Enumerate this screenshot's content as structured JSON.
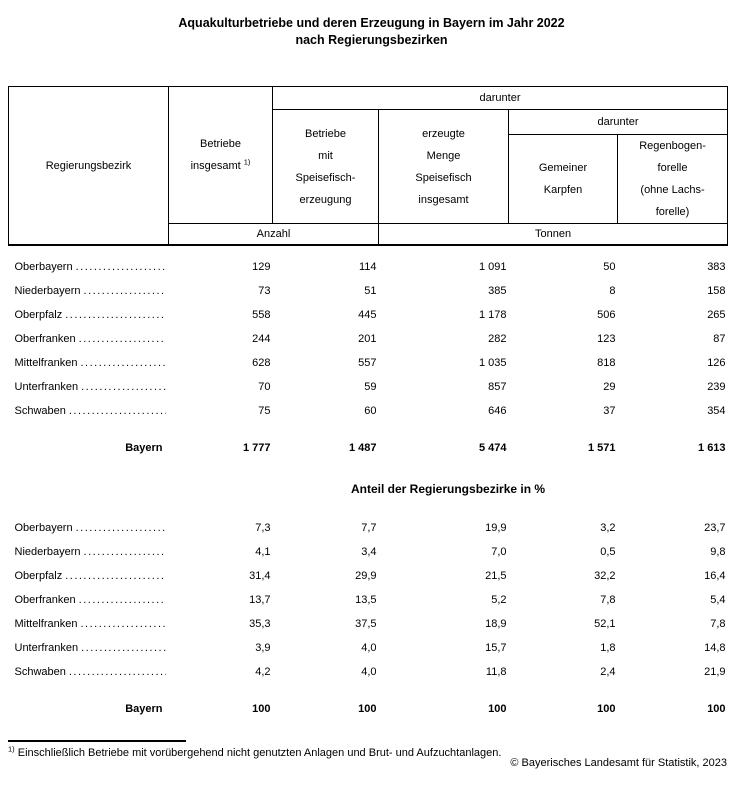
{
  "title": {
    "line1": "Aquakulturbetriebe und deren Erzeugung in Bayern im Jahr 2022",
    "line2": "nach Regierungsbezirken"
  },
  "table": {
    "headers": {
      "c1": "Regierungsbezirk",
      "darunter_outer": "darunter",
      "darunter_inner": "darunter",
      "c2": {
        "line1": "Betriebe",
        "line2": "insgesamt",
        "footnote_marker": "1)"
      },
      "c3": {
        "lines": [
          "Betriebe",
          "mit",
          "Speisefisch-",
          "erzeugung"
        ]
      },
      "c4": {
        "lines": [
          "erzeugte",
          "Menge",
          "Speisefisch",
          "insgesamt"
        ]
      },
      "c5": {
        "lines": [
          "Gemeiner",
          "Karpfen"
        ]
      },
      "c6": {
        "lines": [
          "Regenbogen-",
          "forelle",
          "(ohne Lachs-",
          "forelle)"
        ]
      }
    },
    "units": {
      "anzahl": "Anzahl",
      "tonnen": "Tonnen"
    },
    "absolute_rows": [
      {
        "region": "Oberbayern",
        "v": [
          "129",
          "114",
          "1 091",
          "50",
          "383"
        ]
      },
      {
        "region": "Niederbayern",
        "v": [
          "73",
          "51",
          "385",
          "8",
          "158"
        ]
      },
      {
        "region": "Oberpfalz",
        "v": [
          "558",
          "445",
          "1 178",
          "506",
          "265"
        ]
      },
      {
        "region": "Oberfranken",
        "v": [
          "244",
          "201",
          "282",
          "123",
          "87"
        ]
      },
      {
        "region": "Mittelfranken",
        "v": [
          "628",
          "557",
          "1 035",
          "818",
          "126"
        ]
      },
      {
        "region": "Unterfranken",
        "v": [
          "70",
          "59",
          "857",
          "29",
          "239"
        ]
      },
      {
        "region": "Schwaben",
        "v": [
          "75",
          "60",
          "646",
          "37",
          "354"
        ]
      }
    ],
    "absolute_total": {
      "region": "Bayern",
      "v": [
        "1 777",
        "1 487",
        "5 474",
        "1 571",
        "1 613"
      ]
    },
    "subtitle": "Anteil der Regierungsbezirke in %",
    "percent_rows": [
      {
        "region": "Oberbayern",
        "v": [
          "7,3",
          "7,7",
          "19,9",
          "3,2",
          "23,7"
        ]
      },
      {
        "region": "Niederbayern",
        "v": [
          "4,1",
          "3,4",
          "7,0",
          "0,5",
          "9,8"
        ]
      },
      {
        "region": "Oberpfalz",
        "v": [
          "31,4",
          "29,9",
          "21,5",
          "32,2",
          "16,4"
        ]
      },
      {
        "region": "Oberfranken",
        "v": [
          "13,7",
          "13,5",
          "5,2",
          "7,8",
          "5,4"
        ]
      },
      {
        "region": "Mittelfranken",
        "v": [
          "35,3",
          "37,5",
          "18,9",
          "52,1",
          "7,8"
        ]
      },
      {
        "region": "Unterfranken",
        "v": [
          "3,9",
          "4,0",
          "15,7",
          "1,8",
          "14,8"
        ]
      },
      {
        "region": "Schwaben",
        "v": [
          "4,2",
          "4,0",
          "11,8",
          "2,4",
          "21,9"
        ]
      }
    ],
    "percent_total": {
      "region": "Bayern",
      "v": [
        "100",
        "100",
        "100",
        "100",
        "100"
      ]
    }
  },
  "footnote": {
    "marker": "1)",
    "text": "Einschließlich Betriebe mit vorübergehend nicht genutzten Anlagen und Brut- und Aufzuchtanlagen."
  },
  "copyright": "© Bayerisches Landesamt für Statistik, 2023"
}
